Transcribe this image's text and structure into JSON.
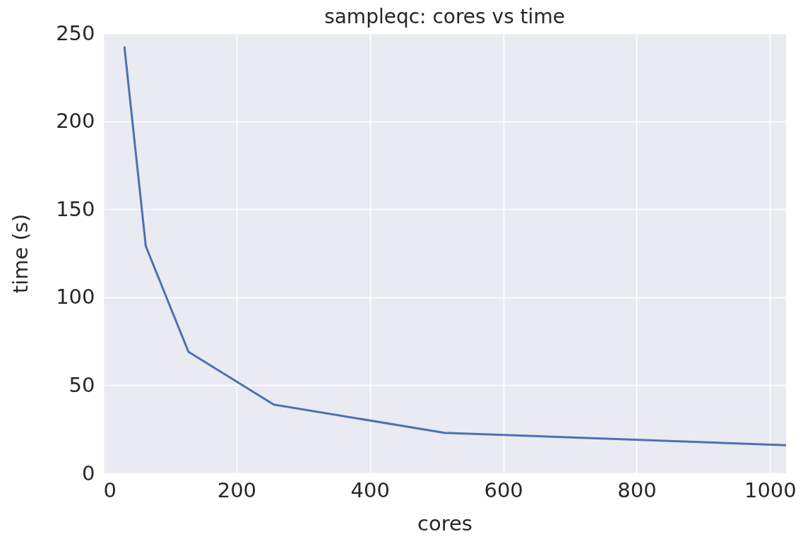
{
  "chart_data": {
    "type": "line",
    "title": "sampleqc: cores vs time",
    "xlabel": "cores",
    "ylabel": "time (s)",
    "x": [
      32,
      64,
      128,
      256,
      512,
      1024
    ],
    "series": [
      {
        "color": "#4c72b0",
        "values": [
          242,
          129,
          69,
          39,
          23,
          16
        ]
      }
    ],
    "xlim": [
      0,
      1024
    ],
    "ylim": [
      0,
      250
    ],
    "xticks": [
      0,
      200,
      400,
      600,
      800,
      1000
    ],
    "yticks": [
      0,
      50,
      100,
      150,
      200,
      250
    ],
    "grid": true,
    "line_style": "solid"
  }
}
